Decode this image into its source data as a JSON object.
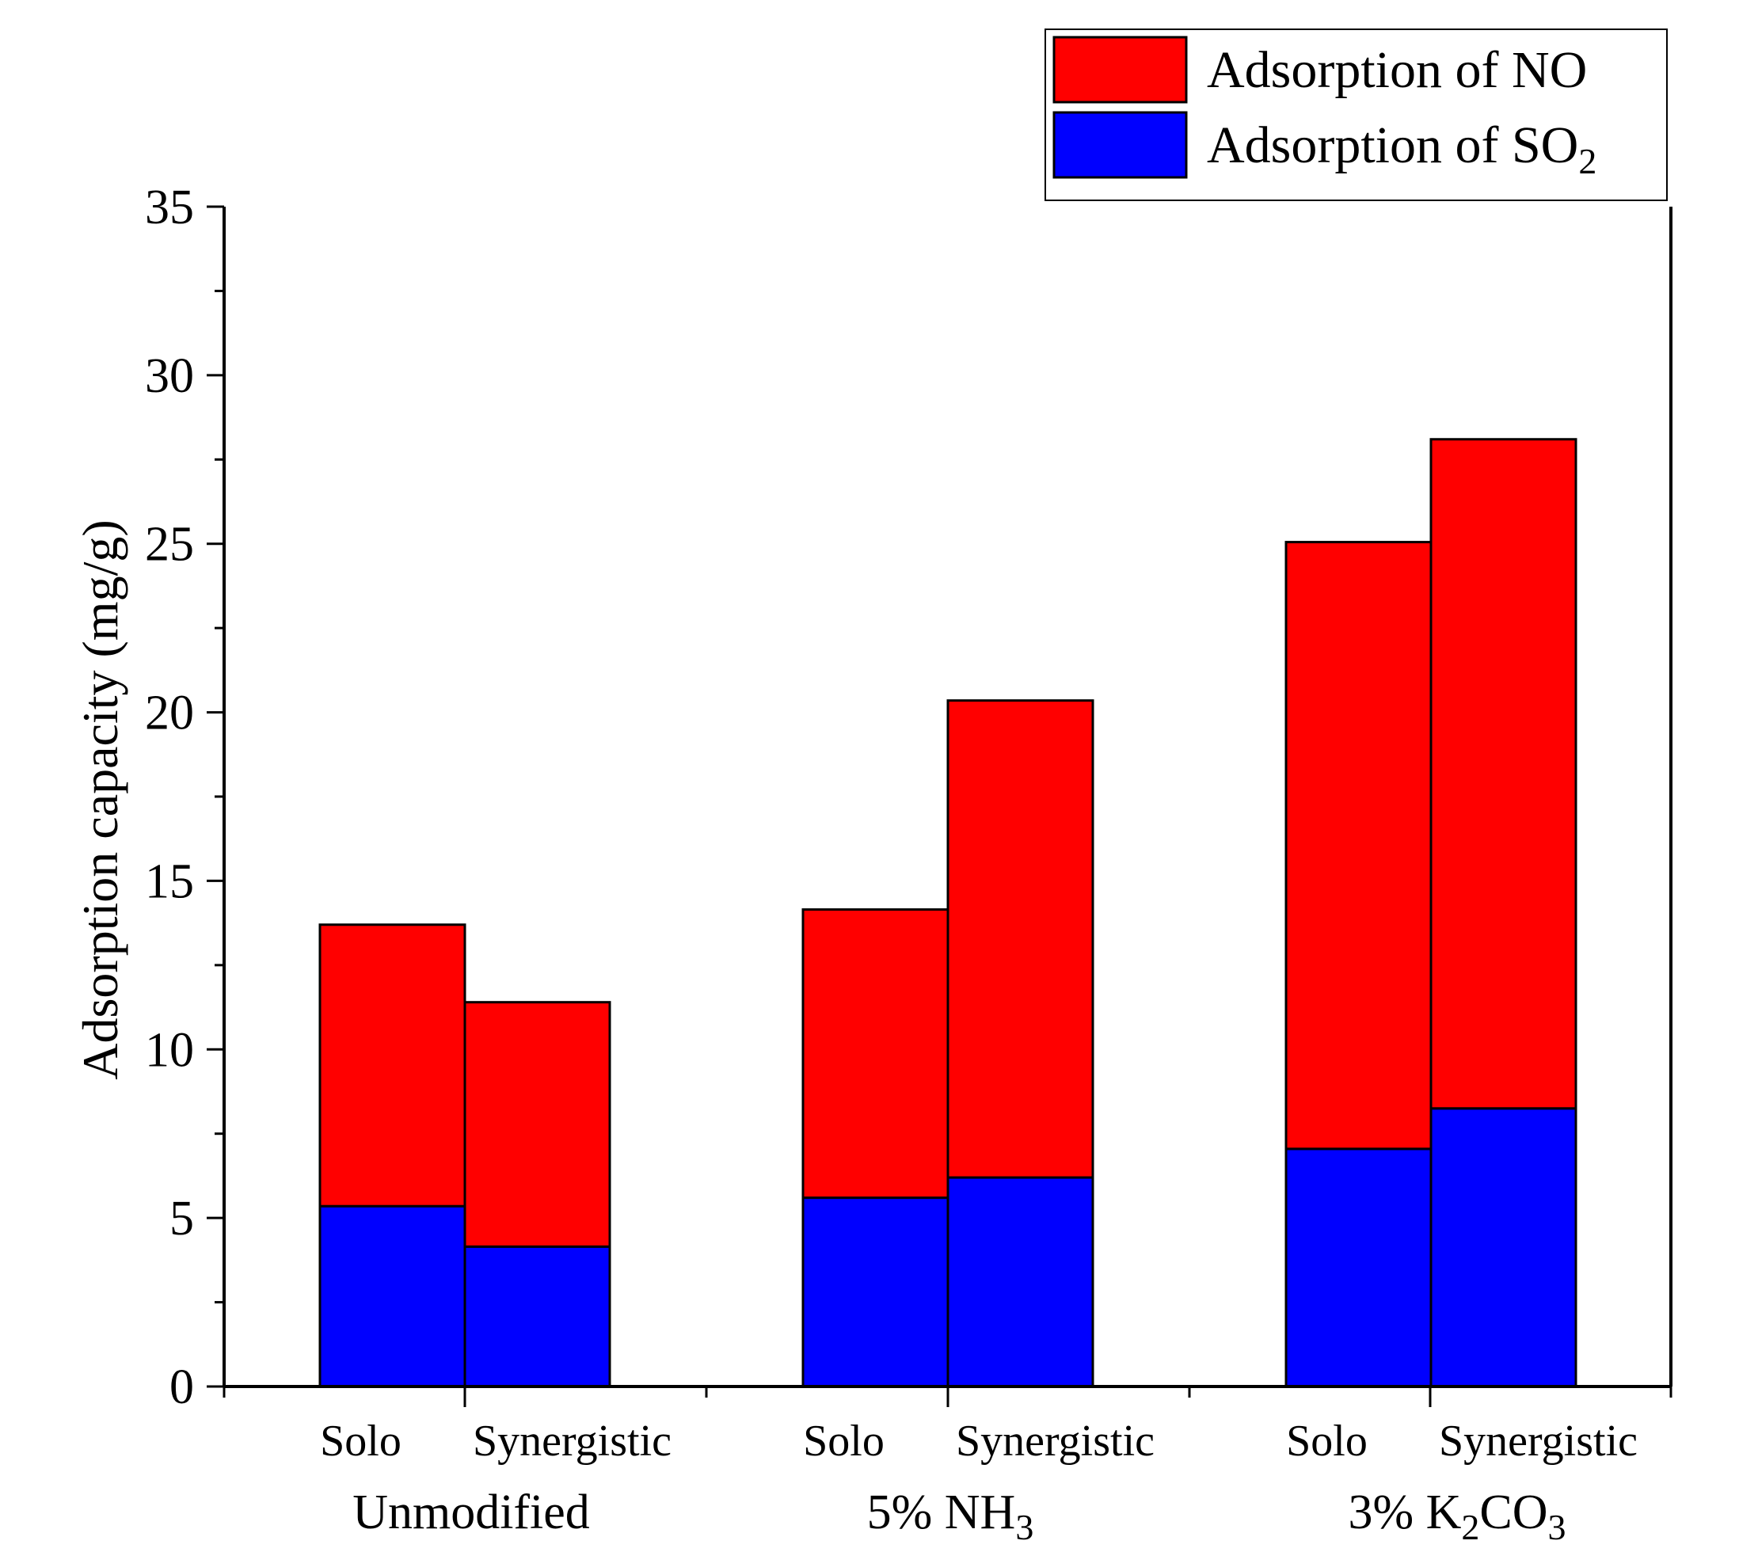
{
  "chart_data": {
    "type": "bar",
    "stacked": true,
    "title": "",
    "xlabel": "",
    "ylabel": "Adsorption capacity (mg/g)",
    "ylim": [
      0,
      35
    ],
    "yticks": [
      0,
      5,
      10,
      15,
      20,
      25,
      30,
      35
    ],
    "groups": [
      {
        "label": "Unmodified",
        "label_sub": "",
        "label_tail": ""
      },
      {
        "label": "5% NH",
        "label_sub": "3",
        "label_tail": ""
      },
      {
        "label": "3% K",
        "label_sub": "2",
        "label_tail": "CO",
        "label_sub2": "3"
      }
    ],
    "subcategories": [
      "Solo",
      "Synergistic"
    ],
    "series": [
      {
        "name": "Adsorption of SO",
        "name_sub": "2",
        "color": "#0000FF",
        "values": [
          [
            5.35,
            4.15
          ],
          [
            5.6,
            6.2
          ],
          [
            7.05,
            8.25
          ]
        ]
      },
      {
        "name": "Adsorption of NO",
        "name_sub": "",
        "color": "#FF0000",
        "values": [
          [
            8.35,
            7.25
          ],
          [
            8.55,
            14.15
          ],
          [
            18.0,
            19.85
          ]
        ]
      }
    ],
    "totals": [
      [
        13.7,
        11.4
      ],
      [
        14.15,
        20.35
      ],
      [
        25.05,
        28.1
      ]
    ],
    "legend_position": "top-right-outside",
    "grid": false
  }
}
